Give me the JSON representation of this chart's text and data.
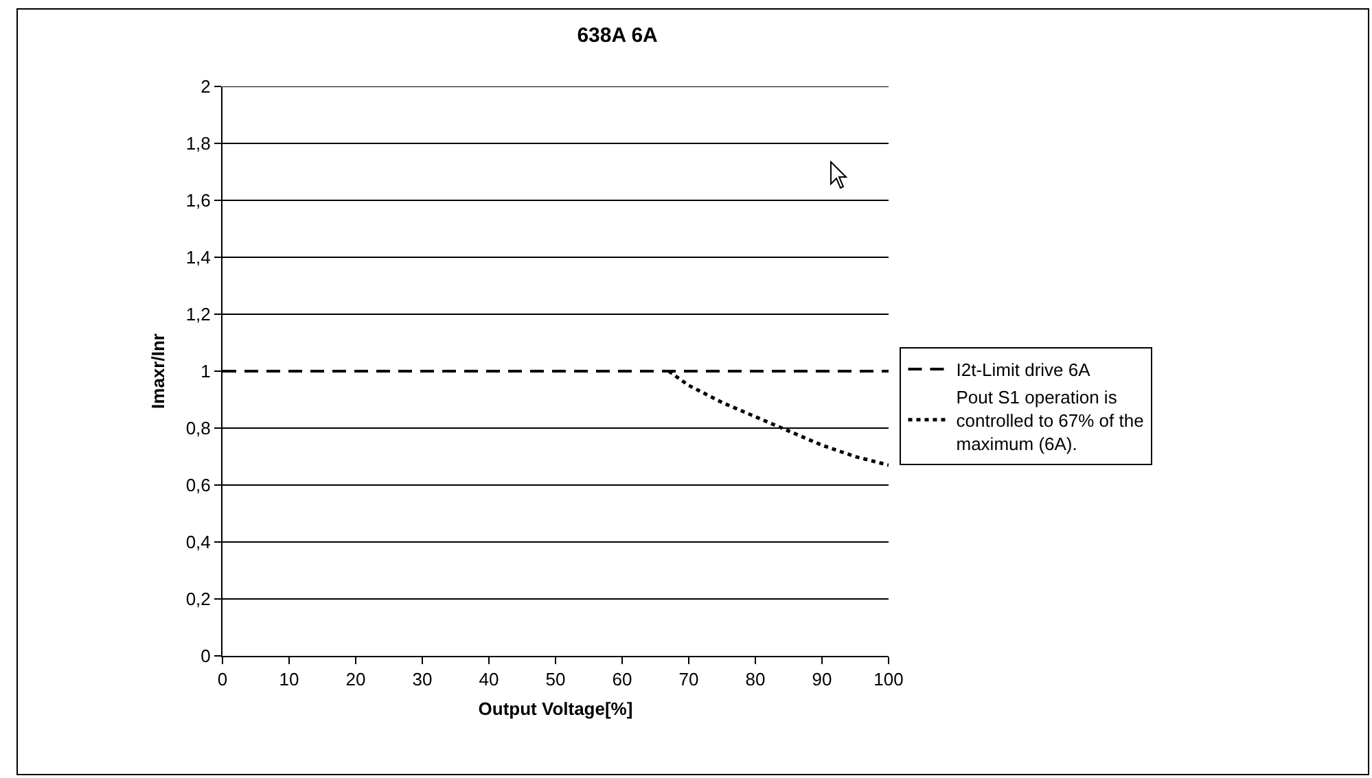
{
  "chart_data": {
    "type": "line",
    "title": "638A 6A",
    "xlabel": "Output Voltage[%]",
    "ylabel": "Imaxr/Inr",
    "xlim": [
      0,
      100
    ],
    "xticks": [
      0,
      10,
      20,
      30,
      40,
      50,
      60,
      70,
      80,
      90,
      100
    ],
    "ylim": [
      0,
      2
    ],
    "yticks": [
      0,
      {
        "value": 0.2,
        "label": "0,2"
      },
      {
        "value": 0.4,
        "label": "0,4"
      },
      {
        "value": 0.6,
        "label": "0,6"
      },
      {
        "value": 0.8,
        "label": "0,8"
      },
      1,
      {
        "value": 1.2,
        "label": "1,2"
      },
      {
        "value": 1.4,
        "label": "1,4"
      },
      {
        "value": 1.6,
        "label": "1,6"
      },
      {
        "value": 1.8,
        "label": "1,8"
      },
      2
    ],
    "grid": "y",
    "legend": "right",
    "series": [
      {
        "name": "I2t-Limit drive 6A",
        "color": "#000000",
        "line_style": "dashed",
        "x": [
          0,
          100
        ],
        "values": [
          1,
          1
        ]
      },
      {
        "name": "Pout S1 operation is controlled to 67% of the maximum (6A).",
        "color": "#000000",
        "line_style": "dotted",
        "x": [
          67,
          70,
          75,
          80,
          85,
          90,
          95,
          100
        ],
        "values": [
          1,
          0.95,
          0.89,
          0.84,
          0.79,
          0.74,
          0.7,
          0.67
        ]
      }
    ]
  }
}
